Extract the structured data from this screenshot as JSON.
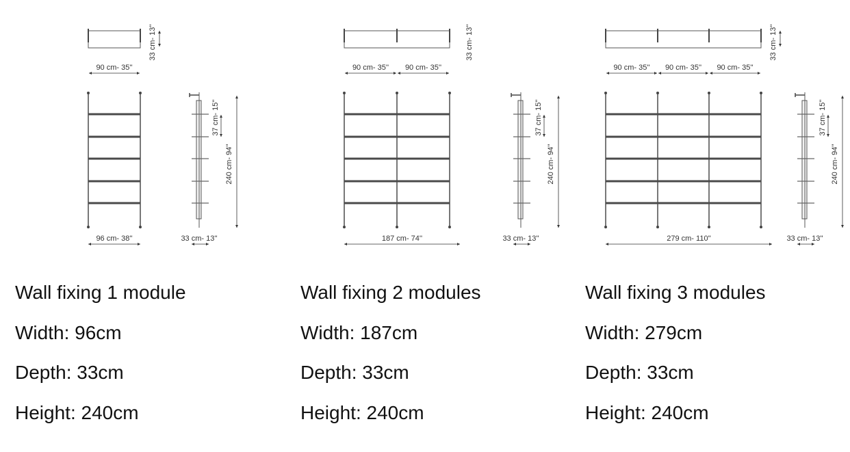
{
  "modules": [
    {
      "title": "Wall fixing 1 module",
      "width": "Width: 96cm",
      "depth": "Depth: 33cm",
      "height": "Height: 240cm",
      "module_labels": [
        "90 cm- 35''"
      ],
      "top_depth_label": "33 cm- 13''",
      "total_width_label": "96 cm- 38''",
      "shelf_spacing_label": "37 cm- 15''",
      "total_height_label": "240 cm- 94''",
      "side_depth_label": "33 cm- 13''"
    },
    {
      "title": "Wall fixing 2 modules",
      "width": "Width: 187cm",
      "depth": "Depth: 33cm",
      "height": "Height: 240cm",
      "module_labels": [
        "90 cm- 35''",
        "90 cm- 35''"
      ],
      "top_depth_label": "33 cm- 13''",
      "total_width_label": "187 cm- 74''",
      "shelf_spacing_label": "37 cm- 15''",
      "total_height_label": "240 cm- 94''",
      "side_depth_label": "33 cm- 13''"
    },
    {
      "title": "Wall fixing 3 modules",
      "width": "Width: 279cm",
      "depth": "Depth: 33cm",
      "height": "Height: 240cm",
      "module_labels": [
        "90 cm- 35''",
        "90 cm- 35''",
        "90 cm- 35''"
      ],
      "top_depth_label": "33 cm- 13''",
      "total_width_label": "279 cm- 110''",
      "shelf_spacing_label": "37 cm- 15''",
      "total_height_label": "240 cm- 94''",
      "side_depth_label": "33 cm- 13''"
    }
  ],
  "shelves_per_module": 5,
  "colors": {
    "shelf": "#4a4a4a",
    "line": "#555555",
    "text": "#111111"
  }
}
